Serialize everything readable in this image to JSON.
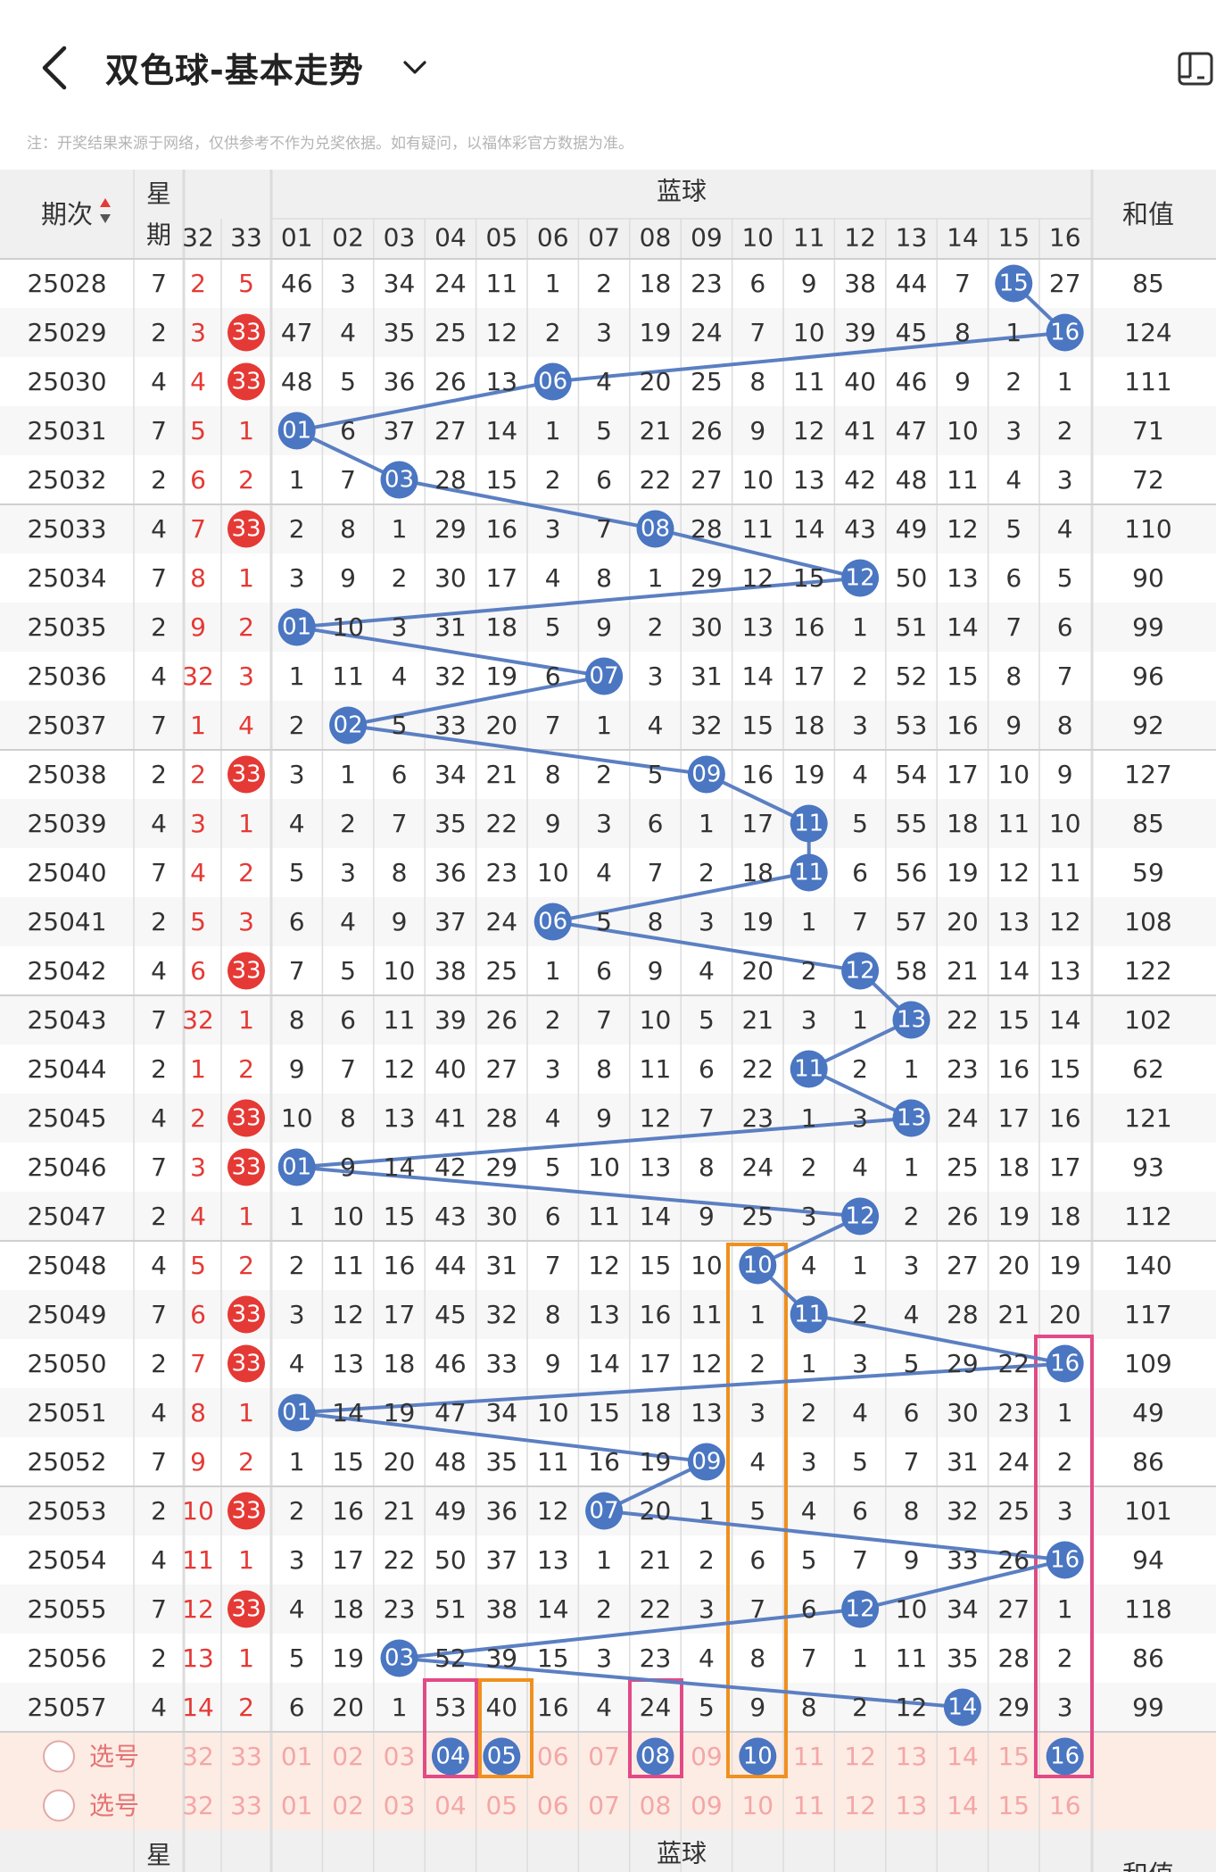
{
  "header": {
    "title": "双色球-基本走势",
    "note": "注：开奖结果来源于网络，仅供参考不作为兑奖依据。如有疑问，以福体彩官方数据为准。"
  },
  "table_header": {
    "period": "期次",
    "weekday_top": "星",
    "weekday_bottom": "期",
    "blue_title": "蓝球",
    "sum": "和值",
    "red_visible_cols": [
      "32",
      "33"
    ],
    "blue_cols": [
      "01",
      "02",
      "03",
      "04",
      "05",
      "06",
      "07",
      "08",
      "09",
      "10",
      "11",
      "12",
      "13",
      "14",
      "15",
      "16"
    ]
  },
  "rows": [
    {
      "period": "25028",
      "weekday": "7",
      "r32": "2",
      "r33": "5",
      "blue": [
        46,
        3,
        34,
        24,
        11,
        1,
        2,
        18,
        23,
        6,
        9,
        38,
        44,
        7,
        "15",
        27
      ],
      "sum": "85"
    },
    {
      "period": "25029",
      "weekday": "2",
      "r32": "3",
      "r33": "33",
      "blue": [
        47,
        4,
        35,
        25,
        12,
        2,
        3,
        19,
        24,
        7,
        10,
        39,
        45,
        8,
        1,
        "16"
      ],
      "sum": "124"
    },
    {
      "period": "25030",
      "weekday": "4",
      "r32": "4",
      "r33": "33",
      "blue": [
        48,
        5,
        36,
        26,
        13,
        "06",
        4,
        20,
        25,
        8,
        11,
        40,
        46,
        9,
        2,
        1
      ],
      "sum": "111"
    },
    {
      "period": "25031",
      "weekday": "7",
      "r32": "5",
      "r33": "1",
      "blue": [
        "01",
        6,
        37,
        27,
        14,
        1,
        5,
        21,
        26,
        9,
        12,
        41,
        47,
        10,
        3,
        2
      ],
      "sum": "71"
    },
    {
      "period": "25032",
      "weekday": "2",
      "r32": "6",
      "r33": "2",
      "blue": [
        1,
        7,
        "03",
        28,
        15,
        2,
        6,
        22,
        27,
        10,
        13,
        42,
        48,
        11,
        4,
        3
      ],
      "sum": "72"
    },
    {
      "period": "25033",
      "weekday": "4",
      "r32": "7",
      "r33": "33",
      "blue": [
        2,
        8,
        1,
        29,
        16,
        3,
        7,
        "08",
        28,
        11,
        14,
        43,
        49,
        12,
        5,
        4
      ],
      "sum": "110"
    },
    {
      "period": "25034",
      "weekday": "7",
      "r32": "8",
      "r33": "1",
      "blue": [
        3,
        9,
        2,
        30,
        17,
        4,
        8,
        1,
        29,
        12,
        15,
        "12",
        50,
        13,
        6,
        5
      ],
      "sum": "90"
    },
    {
      "period": "25035",
      "weekday": "2",
      "r32": "9",
      "r33": "2",
      "blue": [
        "01",
        10,
        3,
        31,
        18,
        5,
        9,
        2,
        30,
        13,
        16,
        1,
        51,
        14,
        7,
        6
      ],
      "sum": "99"
    },
    {
      "period": "25036",
      "weekday": "4",
      "r32": "32",
      "r33": "3",
      "blue": [
        1,
        11,
        4,
        32,
        19,
        6,
        "07",
        3,
        31,
        14,
        17,
        2,
        52,
        15,
        8,
        7
      ],
      "sum": "96"
    },
    {
      "period": "25037",
      "weekday": "7",
      "r32": "1",
      "r33": "4",
      "blue": [
        2,
        "02",
        5,
        33,
        20,
        7,
        1,
        4,
        32,
        15,
        18,
        3,
        53,
        16,
        9,
        8
      ],
      "sum": "92"
    },
    {
      "period": "25038",
      "weekday": "2",
      "r32": "2",
      "r33": "33",
      "blue": [
        3,
        1,
        6,
        34,
        21,
        8,
        2,
        5,
        "09",
        16,
        19,
        4,
        54,
        17,
        10,
        9
      ],
      "sum": "127"
    },
    {
      "period": "25039",
      "weekday": "4",
      "r32": "3",
      "r33": "1",
      "blue": [
        4,
        2,
        7,
        35,
        22,
        9,
        3,
        6,
        1,
        17,
        "11",
        5,
        55,
        18,
        11,
        10
      ],
      "sum": "85"
    },
    {
      "period": "25040",
      "weekday": "7",
      "r32": "4",
      "r33": "2",
      "blue": [
        5,
        3,
        8,
        36,
        23,
        10,
        4,
        7,
        2,
        18,
        "11",
        6,
        56,
        19,
        12,
        11
      ],
      "sum": "59"
    },
    {
      "period": "25041",
      "weekday": "2",
      "r32": "5",
      "r33": "3",
      "blue": [
        6,
        4,
        9,
        37,
        24,
        "06",
        5,
        8,
        3,
        19,
        1,
        7,
        57,
        20,
        13,
        12
      ],
      "sum": "108"
    },
    {
      "period": "25042",
      "weekday": "4",
      "r32": "6",
      "r33": "33",
      "blue": [
        7,
        5,
        10,
        38,
        25,
        1,
        6,
        9,
        4,
        20,
        2,
        "12",
        58,
        21,
        14,
        13
      ],
      "sum": "122"
    },
    {
      "period": "25043",
      "weekday": "7",
      "r32": "32",
      "r33": "1",
      "blue": [
        8,
        6,
        11,
        39,
        26,
        2,
        7,
        10,
        5,
        21,
        3,
        1,
        "13",
        22,
        15,
        14
      ],
      "sum": "102"
    },
    {
      "period": "25044",
      "weekday": "2",
      "r32": "1",
      "r33": "2",
      "blue": [
        9,
        7,
        12,
        40,
        27,
        3,
        8,
        11,
        6,
        22,
        "11",
        2,
        1,
        23,
        16,
        15
      ],
      "sum": "62"
    },
    {
      "period": "25045",
      "weekday": "4",
      "r32": "2",
      "r33": "33",
      "blue": [
        10,
        8,
        13,
        41,
        28,
        4,
        9,
        12,
        7,
        23,
        1,
        3,
        "13",
        24,
        17,
        16
      ],
      "sum": "121"
    },
    {
      "period": "25046",
      "weekday": "7",
      "r32": "3",
      "r33": "33",
      "blue": [
        "01",
        9,
        14,
        42,
        29,
        5,
        10,
        13,
        8,
        24,
        2,
        4,
        1,
        25,
        18,
        17
      ],
      "sum": "93"
    },
    {
      "period": "25047",
      "weekday": "2",
      "r32": "4",
      "r33": "1",
      "blue": [
        1,
        10,
        15,
        43,
        30,
        6,
        11,
        14,
        9,
        25,
        3,
        "12",
        2,
        26,
        19,
        18
      ],
      "sum": "112"
    },
    {
      "period": "25048",
      "weekday": "4",
      "r32": "5",
      "r33": "2",
      "blue": [
        2,
        11,
        16,
        44,
        31,
        7,
        12,
        15,
        10,
        "10",
        4,
        1,
        3,
        27,
        20,
        19
      ],
      "sum": "140"
    },
    {
      "period": "25049",
      "weekday": "7",
      "r32": "6",
      "r33": "33",
      "blue": [
        3,
        12,
        17,
        45,
        32,
        8,
        13,
        16,
        11,
        1,
        "11",
        2,
        4,
        28,
        21,
        20
      ],
      "sum": "117"
    },
    {
      "period": "25050",
      "weekday": "2",
      "r32": "7",
      "r33": "33",
      "blue": [
        4,
        13,
        18,
        46,
        33,
        9,
        14,
        17,
        12,
        2,
        1,
        3,
        5,
        29,
        22,
        "16"
      ],
      "sum": "109"
    },
    {
      "period": "25051",
      "weekday": "4",
      "r32": "8",
      "r33": "1",
      "blue": [
        "01",
        14,
        19,
        47,
        34,
        10,
        15,
        18,
        13,
        3,
        2,
        4,
        6,
        30,
        23,
        1
      ],
      "sum": "49"
    },
    {
      "period": "25052",
      "weekday": "7",
      "r32": "9",
      "r33": "2",
      "blue": [
        1,
        15,
        20,
        48,
        35,
        11,
        16,
        19,
        "09",
        4,
        3,
        5,
        7,
        31,
        24,
        2
      ],
      "sum": "86"
    },
    {
      "period": "25053",
      "weekday": "2",
      "r32": "10",
      "r33": "33",
      "blue": [
        2,
        16,
        21,
        49,
        36,
        12,
        "07",
        20,
        1,
        5,
        4,
        6,
        8,
        32,
        25,
        3
      ],
      "sum": "101"
    },
    {
      "period": "25054",
      "weekday": "4",
      "r32": "11",
      "r33": "1",
      "blue": [
        3,
        17,
        22,
        50,
        37,
        13,
        1,
        21,
        2,
        6,
        5,
        7,
        9,
        33,
        26,
        "16"
      ],
      "sum": "94"
    },
    {
      "period": "25055",
      "weekday": "7",
      "r32": "12",
      "r33": "33",
      "blue": [
        4,
        18,
        23,
        51,
        38,
        14,
        2,
        22,
        3,
        7,
        6,
        "12",
        10,
        34,
        27,
        1
      ],
      "sum": "118"
    },
    {
      "period": "25056",
      "weekday": "2",
      "r32": "13",
      "r33": "1",
      "blue": [
        5,
        19,
        "03",
        52,
        39,
        15,
        3,
        23,
        4,
        8,
        7,
        1,
        11,
        35,
        28,
        2
      ],
      "sum": "86"
    },
    {
      "period": "25057",
      "weekday": "4",
      "r32": "14",
      "r33": "2",
      "blue": [
        6,
        20,
        1,
        53,
        40,
        16,
        4,
        24,
        5,
        9,
        8,
        2,
        12,
        "14",
        29,
        3
      ],
      "sum": "99"
    }
  ],
  "select_rows": [
    {
      "label": "选号",
      "red": [
        "32",
        "33"
      ],
      "blue": [
        "01",
        "02",
        "03",
        "04",
        "05",
        "06",
        "07",
        "08",
        "09",
        "10",
        "11",
        "12",
        "13",
        "14",
        "15",
        "16"
      ],
      "selected": [
        "04",
        "05",
        "08",
        "10",
        "16"
      ]
    },
    {
      "label": "选号",
      "red": [
        "32",
        "33"
      ],
      "blue": [
        "01",
        "02",
        "03",
        "04",
        "05",
        "06",
        "07",
        "08",
        "09",
        "10",
        "11",
        "12",
        "13",
        "14",
        "15",
        "16"
      ],
      "selected": []
    }
  ],
  "footer_header": {
    "weekday_top": "星",
    "blue_title": "蓝球",
    "sum": "和值"
  },
  "colors": {
    "blue_ball": "#4a76c2",
    "line": "#5b7fc2",
    "red": "#e53935",
    "red_ball": "#e53935",
    "header_bg": "#f0f0f0",
    "select_bg": "#fdece4",
    "highlight_pink": "#e24a86",
    "highlight_orange": "#f0901e",
    "grid": "#dcdcdc"
  },
  "icons": {
    "back": "chevron-left-icon",
    "dropdown": "chevron-down-icon",
    "top_right": "device-icon",
    "sort": "sort-icon"
  }
}
